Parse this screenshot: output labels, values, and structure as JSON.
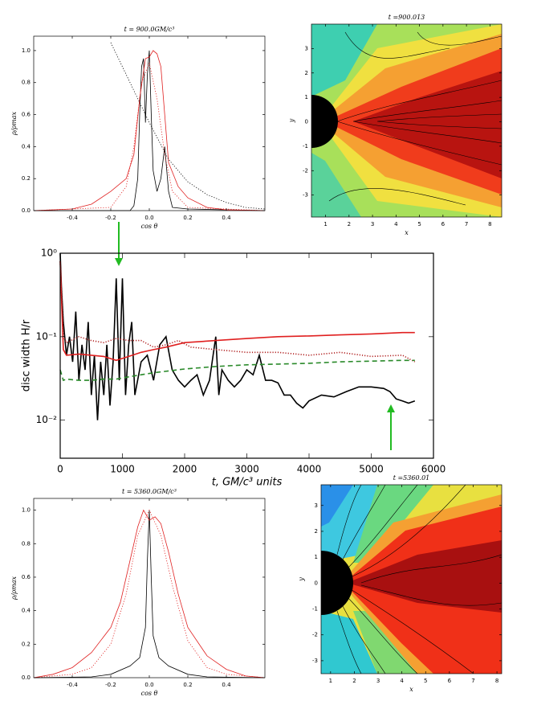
{
  "chart_data": [
    {
      "type": "line",
      "title": "t = 900.0GM/c³",
      "xlabel": "cos θ",
      "ylabel": "ρ/ρmax",
      "xlim": [
        -0.6,
        0.6
      ],
      "ylim": [
        0,
        1.09
      ],
      "xticks": [
        -0.4,
        -0.2,
        {
          "value": 0,
          "label": "0.0"
        },
        0.2,
        0.4
      ],
      "yticks": [
        {
          "value": 0,
          "label": "0.0"
        },
        0.2,
        0.4,
        0.6,
        0.8,
        {
          "value": 1,
          "label": "1.0"
        }
      ],
      "series": [
        {
          "color": "#000000",
          "style": "solid",
          "x": [
            -0.6,
            -0.1,
            -0.08,
            -0.06,
            -0.05,
            -0.04,
            -0.03,
            -0.02,
            -0.01,
            0.0,
            0.01,
            0.02,
            0.04,
            0.06,
            0.08,
            0.1,
            0.12,
            0.2,
            0.6
          ],
          "values": [
            0,
            0,
            0.03,
            0.2,
            0.6,
            0.9,
            0.95,
            0.55,
            0.85,
            1.0,
            0.6,
            0.25,
            0.12,
            0.2,
            0.4,
            0.12,
            0.02,
            0.01,
            0
          ]
        },
        {
          "color": "#e02020",
          "style": "solid",
          "x": [
            -0.6,
            -0.4,
            -0.3,
            -0.2,
            -0.12,
            -0.08,
            -0.05,
            -0.02,
            0.0,
            0.02,
            0.04,
            0.06,
            0.08,
            0.1,
            0.15,
            0.2,
            0.3,
            0.4,
            0.6
          ],
          "values": [
            0,
            0.01,
            0.04,
            0.12,
            0.2,
            0.35,
            0.7,
            0.95,
            0.96,
            1.0,
            0.98,
            0.9,
            0.6,
            0.3,
            0.15,
            0.08,
            0.02,
            0.005,
            0
          ]
        },
        {
          "color": "#e02020",
          "style": "dotted",
          "x": [
            -0.6,
            -0.2,
            -0.12,
            -0.08,
            -0.04,
            0.0,
            0.04,
            0.08,
            0.12,
            0.2,
            0.6
          ],
          "values": [
            0,
            0.02,
            0.15,
            0.4,
            0.8,
            0.92,
            0.7,
            0.35,
            0.12,
            0.02,
            0
          ]
        },
        {
          "color": "#000000",
          "style": "dotted",
          "x": [
            -0.2,
            -0.1,
            0.0,
            0.1,
            0.2,
            0.3,
            0.4,
            0.5,
            0.6
          ],
          "values": [
            1.05,
            0.8,
            0.55,
            0.32,
            0.18,
            0.1,
            0.05,
            0.02,
            0.01
          ]
        }
      ]
    },
    {
      "type": "contour",
      "title": "t =900.013",
      "xlabel": "x",
      "ylabel": "y",
      "xlim": [
        0.4,
        8.5
      ],
      "ylim": [
        -3.9,
        4
      ],
      "xticks": [
        1,
        2,
        3,
        4,
        5,
        6,
        7,
        8
      ],
      "yticks": [
        -3,
        -2,
        -1,
        0,
        1,
        2,
        3
      ]
    },
    {
      "type": "line",
      "xlabel": "t, GM/c³ units",
      "ylabel": "disc width H/r",
      "yscale": "log",
      "xlim": [
        0,
        6000
      ],
      "ylim": [
        0.0035,
        1
      ],
      "xticks": [
        0,
        1000,
        2000,
        3000,
        4000,
        5000,
        6000
      ],
      "yticks": [
        {
          "value": 0.01,
          "label": "10⁻²"
        },
        {
          "value": 0.1,
          "label": "10⁻¹"
        },
        {
          "value": 1,
          "label": "10⁰"
        }
      ],
      "series": [
        {
          "color": "#000000",
          "style": "solid",
          "x": [
            0,
            20,
            50,
            100,
            150,
            200,
            250,
            300,
            350,
            400,
            450,
            500,
            550,
            600,
            650,
            700,
            750,
            800,
            850,
            900,
            950,
            1000,
            1050,
            1100,
            1150,
            1200,
            1300,
            1400,
            1500,
            1600,
            1700,
            1800,
            1900,
            2000,
            2100,
            2200,
            2300,
            2400,
            2500,
            2550,
            2600,
            2700,
            2800,
            2900,
            3000,
            3100,
            3200,
            3300,
            3400,
            3500,
            3600,
            3700,
            3800,
            3900,
            4000,
            4200,
            4400,
            4600,
            4800,
            5000,
            5200,
            5300,
            5400,
            5500,
            5600,
            5700
          ],
          "values": [
            1.0,
            0.4,
            0.15,
            0.06,
            0.1,
            0.05,
            0.2,
            0.03,
            0.08,
            0.04,
            0.15,
            0.02,
            0.06,
            0.01,
            0.05,
            0.02,
            0.08,
            0.015,
            0.05,
            0.5,
            0.03,
            0.5,
            0.02,
            0.08,
            0.15,
            0.02,
            0.05,
            0.06,
            0.03,
            0.08,
            0.1,
            0.04,
            0.03,
            0.025,
            0.03,
            0.035,
            0.02,
            0.03,
            0.1,
            0.02,
            0.04,
            0.03,
            0.025,
            0.03,
            0.04,
            0.035,
            0.06,
            0.03,
            0.03,
            0.028,
            0.02,
            0.02,
            0.016,
            0.014,
            0.017,
            0.02,
            0.019,
            0.022,
            0.025,
            0.025,
            0.024,
            0.022,
            0.018,
            0.017,
            0.016,
            0.017
          ]
        },
        {
          "color": "#e02020",
          "style": "solid",
          "x": [
            0,
            50,
            100,
            300,
            500,
            700,
            900,
            1100,
            1300,
            1500,
            1700,
            2000,
            2500,
            3000,
            3500,
            4000,
            4500,
            5000,
            5500,
            5700
          ],
          "values": [
            0.8,
            0.07,
            0.06,
            0.062,
            0.06,
            0.058,
            0.052,
            0.058,
            0.065,
            0.07,
            0.075,
            0.085,
            0.09,
            0.095,
            0.1,
            0.102,
            0.105,
            0.108,
            0.112,
            0.112
          ]
        },
        {
          "color": "#b02020",
          "style": "dotted",
          "x": [
            0,
            50,
            100,
            300,
            500,
            700,
            900,
            1100,
            1300,
            1500,
            1700,
            1900,
            2100,
            2500,
            3000,
            3500,
            4000,
            4500,
            5000,
            5500,
            5700
          ],
          "values": [
            0.8,
            0.1,
            0.085,
            0.1,
            0.09,
            0.085,
            0.095,
            0.09,
            0.09,
            0.075,
            0.08,
            0.09,
            0.075,
            0.07,
            0.065,
            0.065,
            0.06,
            0.065,
            0.058,
            0.06,
            0.05
          ]
        },
        {
          "color": "#2a8a2a",
          "style": "dashed",
          "x": [
            0,
            50,
            100,
            300,
            500,
            700,
            900,
            1100,
            1300,
            1500,
            2000,
            2500,
            3000,
            3500,
            4000,
            4500,
            5000,
            5500,
            5700
          ],
          "values": [
            0.04,
            0.03,
            0.031,
            0.03,
            0.03,
            0.031,
            0.031,
            0.033,
            0.035,
            0.037,
            0.041,
            0.044,
            0.046,
            0.047,
            0.048,
            0.05,
            0.051,
            0.052,
            0.052
          ]
        }
      ]
    },
    {
      "type": "line",
      "title": "t = 5360.0GM/c³",
      "xlabel": "cos θ",
      "ylabel": "ρ/ρmax",
      "xlim": [
        -0.6,
        0.6
      ],
      "ylim": [
        0,
        1.07
      ],
      "xticks": [
        -0.4,
        -0.2,
        {
          "value": 0,
          "label": "0.0"
        },
        0.2,
        0.4
      ],
      "yticks": [
        {
          "value": 0,
          "label": "0.0"
        },
        0.2,
        0.4,
        0.6,
        0.8,
        {
          "value": 1,
          "label": "1.0"
        }
      ],
      "series": [
        {
          "color": "#000000",
          "style": "solid",
          "x": [
            -0.6,
            -0.3,
            -0.2,
            -0.1,
            -0.05,
            -0.02,
            -0.01,
            0.0,
            0.01,
            0.02,
            0.05,
            0.1,
            0.2,
            0.3,
            0.6
          ],
          "values": [
            0,
            0.005,
            0.02,
            0.07,
            0.12,
            0.3,
            0.7,
            1.0,
            0.6,
            0.25,
            0.12,
            0.07,
            0.02,
            0.005,
            0
          ]
        },
        {
          "color": "#e02020",
          "style": "solid",
          "x": [
            -0.6,
            -0.5,
            -0.4,
            -0.3,
            -0.2,
            -0.15,
            -0.1,
            -0.06,
            -0.03,
            0.0,
            0.03,
            0.06,
            0.1,
            0.15,
            0.2,
            0.3,
            0.4,
            0.5,
            0.6
          ],
          "values": [
            0,
            0.02,
            0.06,
            0.15,
            0.3,
            0.45,
            0.7,
            0.9,
            1.0,
            0.94,
            0.96,
            0.92,
            0.75,
            0.5,
            0.3,
            0.13,
            0.05,
            0.01,
            0
          ]
        },
        {
          "color": "#e02020",
          "style": "dotted",
          "x": [
            -0.6,
            -0.4,
            -0.3,
            -0.2,
            -0.12,
            -0.06,
            0.0,
            0.06,
            0.12,
            0.2,
            0.3,
            0.4,
            0.6
          ],
          "values": [
            0,
            0.02,
            0.06,
            0.2,
            0.5,
            0.85,
            1.0,
            0.85,
            0.55,
            0.22,
            0.06,
            0.02,
            0
          ]
        }
      ]
    },
    {
      "type": "contour",
      "title": "t =5360.01",
      "xlabel": "x",
      "ylabel": "y",
      "xlim": [
        0.6,
        8.2
      ],
      "ylim": [
        -3.5,
        3.8
      ],
      "xticks": [
        1,
        2,
        3,
        4,
        5,
        6,
        7,
        8
      ],
      "yticks": [
        -3,
        -2,
        -1,
        0,
        1,
        2,
        3
      ]
    }
  ]
}
